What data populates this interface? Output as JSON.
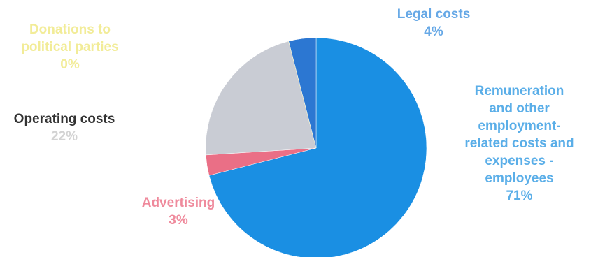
{
  "chart_data": {
    "type": "pie",
    "title": "",
    "slices": [
      {
        "label": "Remuneration and other employment-related costs and expenses - employees",
        "lines": [
          "Remuneration",
          "and other",
          "employment-",
          "related costs and",
          "expenses -",
          "employees"
        ],
        "value": 71,
        "display": "71%",
        "color": "#1a8fe3",
        "label_color": "#5aaee8"
      },
      {
        "label": "Advertising",
        "lines": [
          "Advertising"
        ],
        "value": 3,
        "display": "3%",
        "color": "#ea6f86",
        "label_color": "#ef8a9c"
      },
      {
        "label": "Operating costs",
        "lines": [
          "Operating costs"
        ],
        "value": 22,
        "display": "22%",
        "color": "#c9ccd4",
        "label_color": "#333333",
        "value_color": "#d3d3d3"
      },
      {
        "label": "Donations to political parties",
        "lines": [
          "Donations to",
          "political parties"
        ],
        "value": 0,
        "display": "0%",
        "color": "#f3ee9a",
        "label_color": "#f2ec98"
      },
      {
        "label": "Legal costs",
        "lines": [
          "Legal costs"
        ],
        "value": 4,
        "display": "4%",
        "color": "#2c77d2",
        "label_color": "#66a8e6"
      }
    ]
  }
}
